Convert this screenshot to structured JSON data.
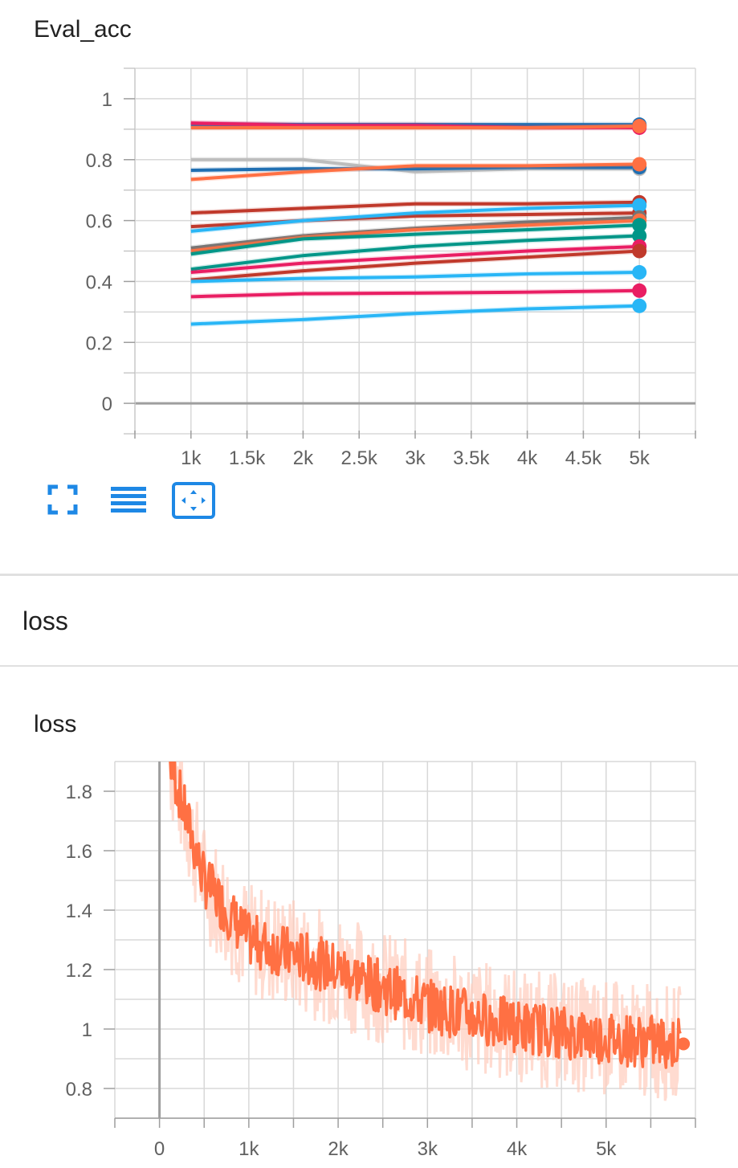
{
  "eval_card": {
    "title": "Eval_acc",
    "toolbar": {
      "fullscreen_icon": "fullscreen-icon",
      "data_table_icon": "data-table-icon",
      "fit_domain_icon": "fit-domain-icon",
      "accent_color": "#1e88e5"
    }
  },
  "loss_section": {
    "title": "loss"
  },
  "loss_card": {
    "title": "loss"
  },
  "chart_data": [
    {
      "type": "line",
      "title": "Eval_acc",
      "xlabel": "",
      "ylabel": "",
      "x": [
        1000,
        2000,
        3000,
        4000,
        5000
      ],
      "xticks": [
        "1k",
        "1.5k",
        "2k",
        "2.5k",
        "3k",
        "3.5k",
        "4k",
        "4.5k",
        "5k"
      ],
      "xtick_values": [
        1000,
        1500,
        2000,
        2500,
        3000,
        3500,
        4000,
        4500,
        5000
      ],
      "yticks": [
        "0",
        "0.2",
        "0.4",
        "0.6",
        "0.8",
        "1"
      ],
      "ytick_values": [
        0,
        0.2,
        0.4,
        0.6,
        0.8,
        1
      ],
      "xlim": [
        500,
        5500
      ],
      "ylim": [
        -0.1,
        1.1
      ],
      "grid": true,
      "legend": "none",
      "series": [
        {
          "color": "#ef6c9a",
          "values": [
            0.92,
            0.915,
            0.915,
            0.91,
            0.91
          ]
        },
        {
          "color": "#1f6fb2",
          "values": [
            0.915,
            0.915,
            0.915,
            0.915,
            0.915
          ]
        },
        {
          "color": "#e91e63",
          "values": [
            0.92,
            0.912,
            0.912,
            0.905,
            0.905
          ]
        },
        {
          "color": "#ff7043",
          "values": [
            0.905,
            0.905,
            0.905,
            0.905,
            0.91
          ]
        },
        {
          "color": "#bdbdbd",
          "values": [
            0.8,
            0.8,
            0.76,
            0.77,
            0.77
          ]
        },
        {
          "color": "#1f6fb2",
          "values": [
            0.765,
            0.77,
            0.77,
            0.775,
            0.775
          ]
        },
        {
          "color": "#ff7043",
          "values": [
            0.735,
            0.76,
            0.78,
            0.78,
            0.785
          ]
        },
        {
          "color": "#c0392b",
          "values": [
            0.625,
            0.64,
            0.655,
            0.655,
            0.66
          ]
        },
        {
          "color": "#c0392b",
          "values": [
            0.58,
            0.6,
            0.615,
            0.62,
            0.625
          ]
        },
        {
          "color": "#29b6f6",
          "values": [
            0.565,
            0.6,
            0.625,
            0.64,
            0.65
          ]
        },
        {
          "color": "#757575",
          "values": [
            0.51,
            0.55,
            0.575,
            0.595,
            0.61
          ]
        },
        {
          "color": "#ff7043",
          "values": [
            0.5,
            0.545,
            0.57,
            0.585,
            0.6
          ]
        },
        {
          "color": "#009688",
          "values": [
            0.49,
            0.54,
            0.555,
            0.57,
            0.585
          ]
        },
        {
          "color": "#009688",
          "values": [
            0.44,
            0.485,
            0.515,
            0.535,
            0.55
          ]
        },
        {
          "color": "#e91e63",
          "values": [
            0.43,
            0.46,
            0.48,
            0.5,
            0.515
          ]
        },
        {
          "color": "#c0392b",
          "values": [
            0.405,
            0.435,
            0.46,
            0.48,
            0.5
          ]
        },
        {
          "color": "#29b6f6",
          "values": [
            0.4,
            0.41,
            0.415,
            0.425,
            0.43
          ]
        },
        {
          "color": "#e91e63",
          "values": [
            0.35,
            0.36,
            0.362,
            0.365,
            0.37
          ]
        },
        {
          "color": "#29b6f6",
          "values": [
            0.26,
            0.275,
            0.295,
            0.31,
            0.32
          ]
        }
      ]
    },
    {
      "type": "line",
      "title": "loss",
      "xlabel": "",
      "ylabel": "",
      "xticks": [
        "0",
        "1k",
        "2k",
        "3k",
        "4k",
        "5k"
      ],
      "xtick_values": [
        0,
        1000,
        2000,
        3000,
        4000,
        5000
      ],
      "yticks": [
        "0.8",
        "1",
        "1.2",
        "1.4",
        "1.6",
        "1.8"
      ],
      "ytick_values": [
        0.8,
        1.0,
        1.2,
        1.4,
        1.6,
        1.8
      ],
      "xlim": [
        -500,
        6000
      ],
      "ylim": [
        0.7,
        1.9
      ],
      "grid": true,
      "legend": "none",
      "smoothed_color": "#ff7043",
      "raw_color": "#ffccbc",
      "x_range": [
        120,
        5830
      ],
      "trend_points": [
        [
          120,
          1.9
        ],
        [
          500,
          1.5
        ],
        [
          1000,
          1.3
        ],
        [
          2000,
          1.2
        ],
        [
          3000,
          1.08
        ],
        [
          4000,
          1.01
        ],
        [
          5000,
          0.97
        ],
        [
          5830,
          0.95
        ]
      ],
      "noise_amplitude": 0.09,
      "last_value": 0.95
    }
  ]
}
